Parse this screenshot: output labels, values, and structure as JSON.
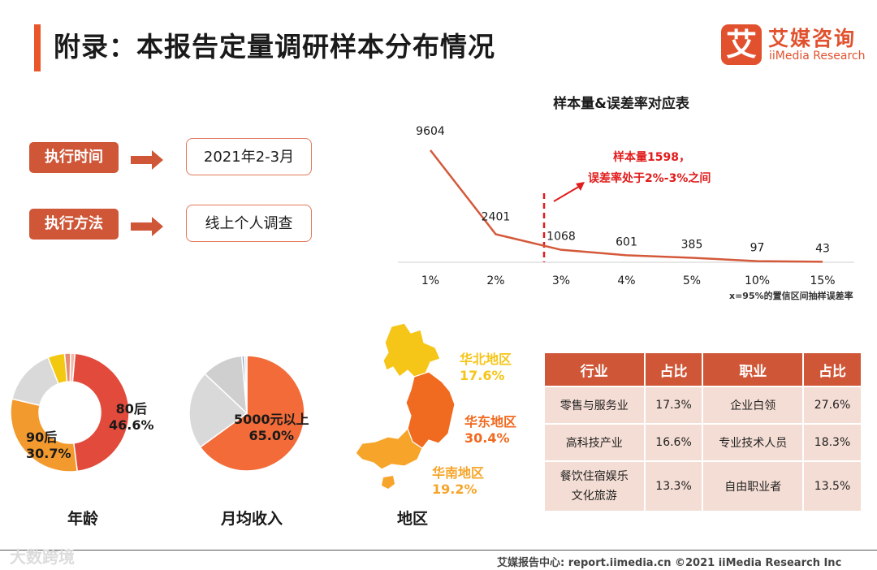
{
  "header": {
    "title": "附录：本报告定量调研样本分布情况",
    "logo_mark": "艾",
    "logo_cn": "艾媒咨询",
    "logo_en": "iiMedia Research"
  },
  "info": {
    "time_label": "执行时间",
    "time_value": "2021年2-3月",
    "method_label": "执行方法",
    "method_value": "线上个人调查"
  },
  "colors": {
    "accent": "#e1512e",
    "line": "#d4593a",
    "table_header": "#cf5637",
    "table_cell": "#f4ddd4",
    "north": "#f5c518",
    "east": "#f06a1f",
    "south": "#f7a52a"
  },
  "chart_data": [
    {
      "type": "line",
      "title": "样本量&误差率对应表",
      "categories": [
        "1%",
        "2%",
        "3%",
        "4%",
        "5%",
        "10%",
        "15%"
      ],
      "values": [
        9604,
        2401,
        1068,
        601,
        385,
        97,
        43
      ],
      "ylim": [
        0,
        9604
      ],
      "marker_between": [
        "2%",
        "3%"
      ],
      "annotation": [
        "样本量1598，",
        "误差率处于2%-3%之间"
      ],
      "note": "x=95%的置信区间抽样误差率"
    },
    {
      "type": "pie",
      "caption": "年龄",
      "donut": true,
      "slices": [
        {
          "name": "80后",
          "value": 46.6,
          "label": "80后",
          "pct": "46.6%",
          "color": "#e24a3b"
        },
        {
          "name": "90后",
          "value": 30.7,
          "label": "90后",
          "pct": "30.7%",
          "color": "#f29a2e"
        },
        {
          "name": "other1",
          "value": 15.3,
          "label": "",
          "pct": "",
          "color": "#d9d9d9"
        },
        {
          "name": "other2",
          "value": 4.6,
          "label": "",
          "pct": "",
          "color": "#f2c811"
        },
        {
          "name": "other3",
          "value": 1.6,
          "label": "",
          "pct": "",
          "color": "#e58a73"
        },
        {
          "name": "other4",
          "value": 1.2,
          "label": "",
          "pct": "",
          "color": "#f5b8a8"
        }
      ]
    },
    {
      "type": "pie",
      "caption": "月均收入",
      "donut": false,
      "slices": [
        {
          "name": "5000元以上",
          "value": 65.0,
          "label": "5000元以上",
          "pct": "65.0%",
          "color": "#f26b38"
        },
        {
          "name": "other1",
          "value": 22.0,
          "label": "",
          "pct": "",
          "color": "#d9d9d9"
        },
        {
          "name": "other2",
          "value": 11.6,
          "label": "",
          "pct": "",
          "color": "#cfcfcf"
        },
        {
          "name": "other3",
          "value": 0.7,
          "label": "",
          "pct": "",
          "color": "#8ea9c8"
        },
        {
          "name": "other4",
          "value": 0.7,
          "label": "",
          "pct": "",
          "color": "#e8e8e8"
        }
      ]
    }
  ],
  "region": {
    "caption": "地区",
    "north": {
      "name": "华北地区",
      "pct": "17.6%"
    },
    "east": {
      "name": "华东地区",
      "pct": "30.4%"
    },
    "south": {
      "name": "华南地区",
      "pct": "19.2%"
    }
  },
  "table": {
    "headers": [
      "行业",
      "占比",
      "职业",
      "占比"
    ],
    "rows": [
      [
        "零售与服务业",
        "17.3%",
        "企业白领",
        "27.6%"
      ],
      [
        "高科技产业",
        "16.6%",
        "专业技术人员",
        "18.3%"
      ],
      [
        "餐饮住宿娱乐\n文化旅游",
        "13.3%",
        "自由职业者",
        "13.5%"
      ]
    ]
  },
  "footer": {
    "text": "艾媒报告中心: report.iimedia.cn ©2021  iiMedia Research  Inc",
    "watermark": "大数跨境"
  }
}
